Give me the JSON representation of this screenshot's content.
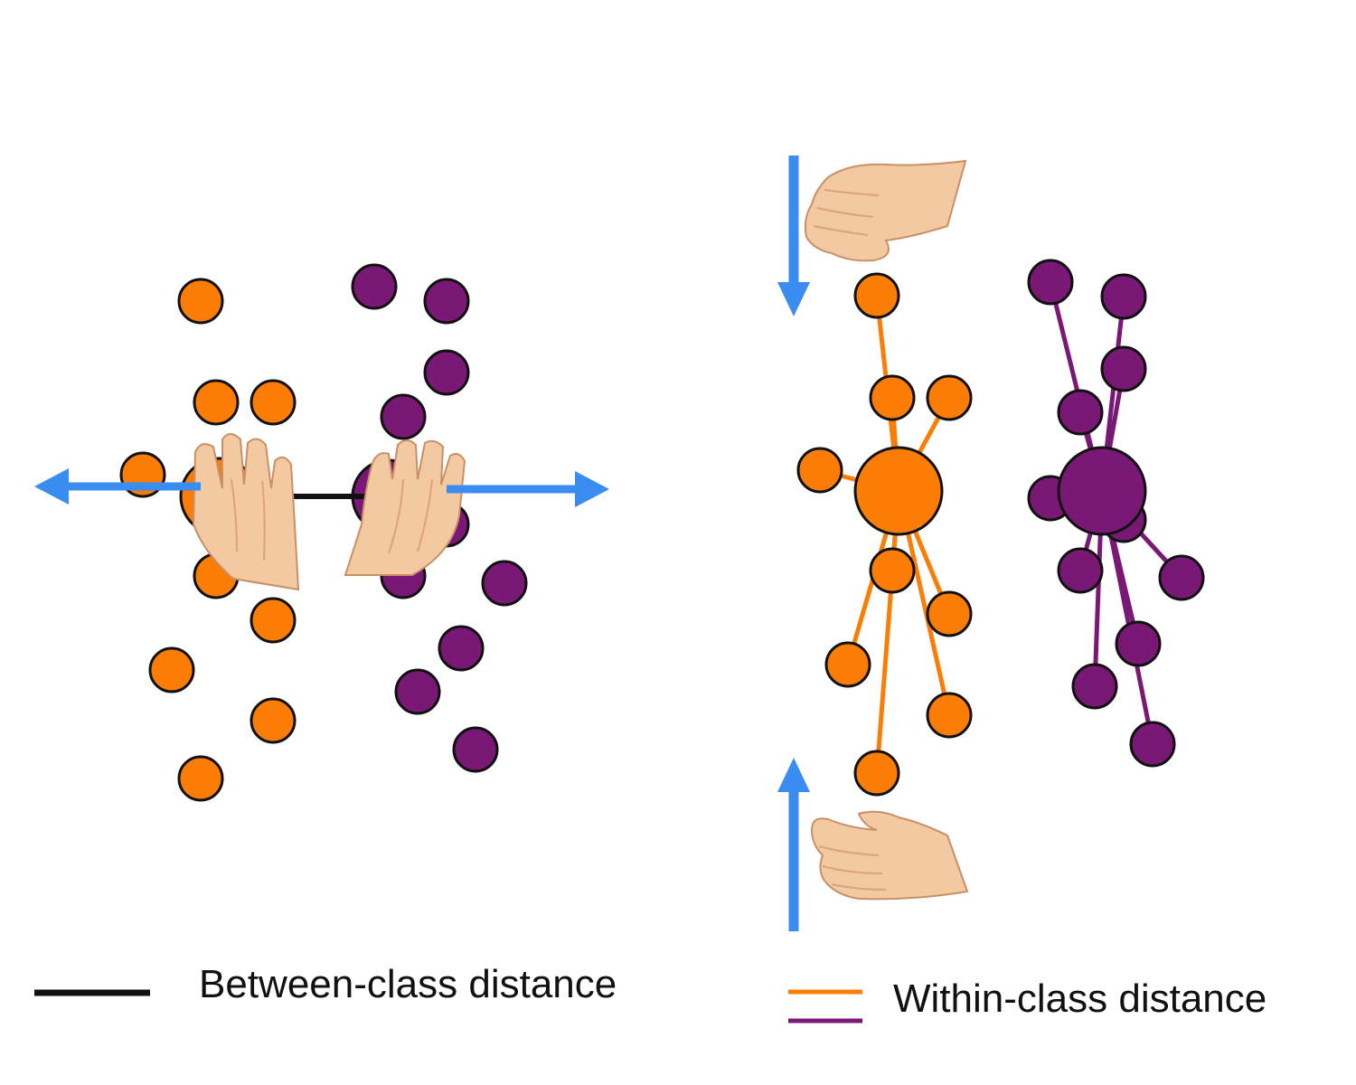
{
  "colors": {
    "orange": "#fb7d06",
    "purple": "#7a1875",
    "between_line": "#111111",
    "arrow": "#3a8df0",
    "outline": "#111111",
    "skin": "#f3c9a2"
  },
  "legend": {
    "between_label": "Between-class distance",
    "within_label": "Within-class distance"
  },
  "panels": {
    "left": {
      "icons": [
        "hand-icon",
        "hand-icon",
        "arrow-left-icon",
        "arrow-right-icon"
      ]
    },
    "right": {
      "icons": [
        "hand-icon",
        "hand-icon",
        "arrow-down-icon",
        "arrow-up-icon"
      ]
    }
  }
}
